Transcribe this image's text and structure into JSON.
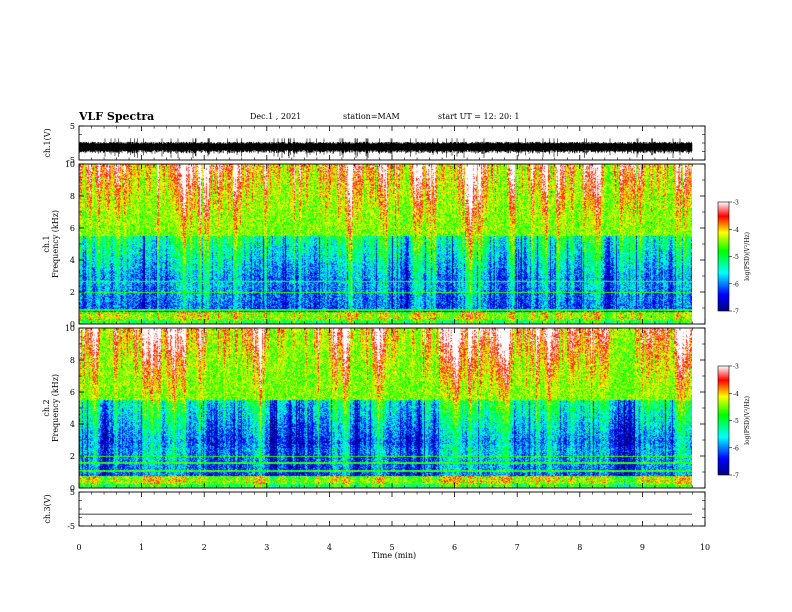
{
  "header": {
    "title": "VLF Spectra",
    "date": "Dec.1 , 2021",
    "station": "station=MAM",
    "start": "start UT = 12: 20: 1"
  },
  "chart_data": [
    {
      "type": "line",
      "panel": "ch1-waveform",
      "ylabel": "ch.1(V)",
      "ylim": [
        -5,
        5
      ],
      "yticks": [
        "5",
        "-5"
      ],
      "description_values": {
        "band_center": -1.2,
        "band_amplitude": 1.6
      }
    },
    {
      "type": "heatmap",
      "panel": "ch1-spectrogram",
      "ylabel": "ch.1 Frequency (kHz)",
      "ylim": [
        0,
        10
      ],
      "yticks": [
        "0",
        "2",
        "4",
        "6",
        "8",
        "10"
      ],
      "colorbar": {
        "label": "log(PSD)(V²/Hz)",
        "range": [
          -7,
          -3
        ],
        "ticks": [
          "-3",
          "-4",
          "-5",
          "-6",
          "-7"
        ]
      }
    },
    {
      "type": "heatmap",
      "panel": "ch2-spectrogram",
      "ylabel": "ch.2 Frequency (kHz)",
      "ylim": [
        0,
        10
      ],
      "yticks": [
        "0",
        "2",
        "4",
        "6",
        "8",
        "10"
      ],
      "colorbar": {
        "label": "log(PSD)(V²/Hz)",
        "range": [
          -7,
          -3
        ],
        "ticks": [
          "-3",
          "-4",
          "-5",
          "-6",
          "-7"
        ]
      }
    },
    {
      "type": "line",
      "panel": "ch3-waveform",
      "ylabel": "ch.3(V)",
      "ylim": [
        -5,
        5
      ],
      "yticks": [
        "5",
        "-5"
      ],
      "values": [
        -1.5,
        -1.5
      ]
    }
  ],
  "xaxis": {
    "label": "Time (min)",
    "range": [
      0,
      10
    ],
    "ticks": [
      "0",
      "1",
      "2",
      "3",
      "4",
      "5",
      "6",
      "7",
      "8",
      "9",
      "10"
    ]
  }
}
